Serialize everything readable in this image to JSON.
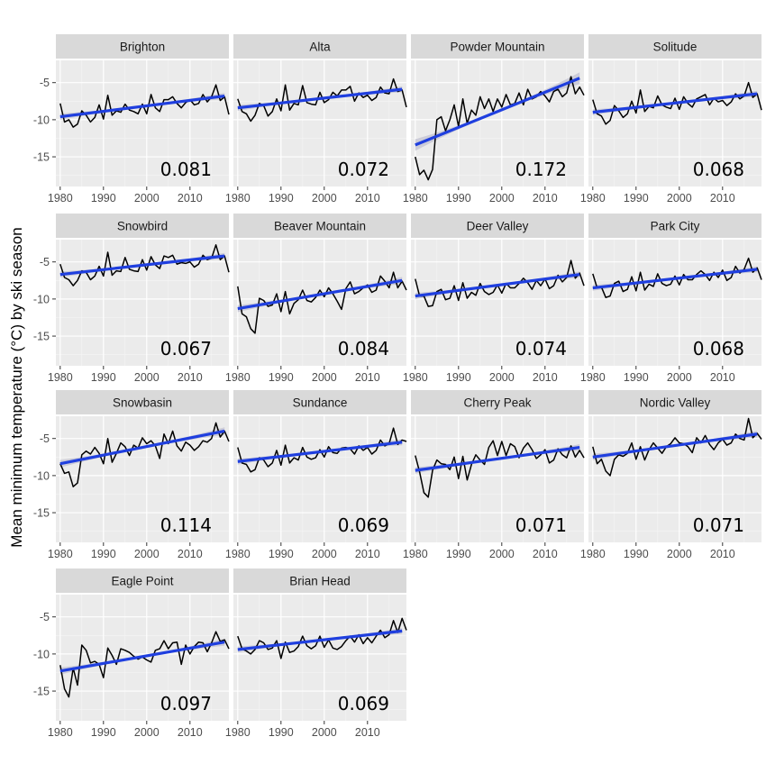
{
  "chart_data": {
    "type": "line",
    "ylabel": "Mean minimum temperature (°C) by ski season",
    "xlabel": "",
    "xlim": [
      1979,
      2019
    ],
    "ylim": [
      -19,
      -2
    ],
    "x_ticks": [
      1980,
      1990,
      2000,
      2010
    ],
    "y_ticks": [
      -5,
      -10,
      -15
    ],
    "y_tick_labels": [
      "-5",
      "-10",
      "-15"
    ],
    "x_tick_labels": [
      "1980",
      "1990",
      "2000",
      "2010"
    ],
    "grid": true,
    "series_color": "#000000",
    "trend_color": "#1f3fdf",
    "ribbon_color": "#c9c9d6",
    "panel_bg": "#ebebeb",
    "strip_bg": "#d9d9d9",
    "panels": [
      {
        "name": "Brighton",
        "slope": "0.081",
        "trend": [
          -9.6,
          -6.8
        ],
        "values": [
          -7.8,
          -10.3,
          -10.0,
          -11.0,
          -10.6,
          -8.8,
          -9.4,
          -10.3,
          -9.7,
          -8.0,
          -9.9,
          -6.7,
          -9.4,
          -8.8,
          -9.0,
          -7.9,
          -8.7,
          -8.9,
          -9.2,
          -7.9,
          -9.2,
          -6.6,
          -8.4,
          -8.9,
          -7.3,
          -7.3,
          -6.9,
          -7.8,
          -8.4,
          -7.7,
          -7.3,
          -8.0,
          -7.8,
          -6.6,
          -7.6,
          -6.9,
          -5.3,
          -7.4,
          -6.9,
          -9.3
        ]
      },
      {
        "name": "Alta",
        "slope": "0.072",
        "trend": [
          -8.4,
          -5.9
        ],
        "values": [
          -7.2,
          -8.9,
          -9.2,
          -10.2,
          -9.4,
          -7.8,
          -8.1,
          -9.5,
          -8.9,
          -7.2,
          -8.8,
          -5.3,
          -8.7,
          -7.8,
          -8.0,
          -5.4,
          -7.7,
          -7.9,
          -8.0,
          -6.3,
          -7.7,
          -7.3,
          -6.3,
          -6.8,
          -6.0,
          -6.0,
          -5.5,
          -7.5,
          -6.4,
          -7.0,
          -6.7,
          -7.4,
          -7.0,
          -5.6,
          -6.4,
          -6.5,
          -4.5,
          -6.2,
          -6.0,
          -8.3
        ]
      },
      {
        "name": "Powder Mountain",
        "slope": "0.172",
        "trend": [
          -13.4,
          -4.4
        ],
        "values": [
          -15.0,
          -17.4,
          -16.8,
          -18.1,
          -16.7,
          -10.0,
          -9.6,
          -11.5,
          -10.0,
          -8.0,
          -10.9,
          -7.2,
          -10.5,
          -8.7,
          -9.4,
          -6.9,
          -8.5,
          -7.2,
          -8.9,
          -7.2,
          -8.3,
          -6.6,
          -8.0,
          -7.8,
          -6.4,
          -8.0,
          -5.9,
          -7.2,
          -6.9,
          -6.2,
          -6.8,
          -7.6,
          -6.2,
          -5.9,
          -6.9,
          -6.4,
          -4.2,
          -6.5,
          -5.6,
          -6.7
        ]
      },
      {
        "name": "Solitude",
        "slope": "0.068",
        "trend": [
          -9.0,
          -6.5
        ],
        "values": [
          -7.3,
          -9.2,
          -9.5,
          -10.6,
          -10.1,
          -8.1,
          -8.8,
          -9.7,
          -9.2,
          -7.5,
          -9.1,
          -6.0,
          -8.9,
          -8.2,
          -8.4,
          -6.8,
          -8.0,
          -8.3,
          -8.5,
          -7.1,
          -8.6,
          -6.9,
          -7.8,
          -8.3,
          -7.2,
          -6.9,
          -6.6,
          -8.0,
          -7.1,
          -7.6,
          -7.4,
          -8.1,
          -7.6,
          -6.5,
          -7.2,
          -6.8,
          -5.0,
          -7.0,
          -6.5,
          -8.7
        ]
      },
      {
        "name": "Snowbird",
        "slope": "0.067",
        "trend": [
          -6.7,
          -4.2
        ],
        "values": [
          -5.3,
          -7.1,
          -7.4,
          -8.2,
          -7.5,
          -6.2,
          -6.4,
          -7.4,
          -6.9,
          -5.6,
          -6.9,
          -3.7,
          -6.8,
          -6.2,
          -6.3,
          -4.4,
          -6.0,
          -6.2,
          -6.3,
          -4.7,
          -6.1,
          -4.3,
          -5.4,
          -5.9,
          -4.2,
          -4.4,
          -4.1,
          -5.3,
          -5.1,
          -5.2,
          -5.0,
          -5.7,
          -5.3,
          -4.1,
          -4.7,
          -4.5,
          -2.7,
          -4.7,
          -4.2,
          -6.4
        ]
      },
      {
        "name": "Beaver Mountain",
        "slope": "0.084",
        "trend": [
          -11.3,
          -7.5
        ],
        "values": [
          -8.3,
          -12.0,
          -12.4,
          -14.0,
          -14.6,
          -9.9,
          -10.2,
          -11.0,
          -10.8,
          -9.3,
          -11.7,
          -9.0,
          -12.0,
          -10.6,
          -10.1,
          -8.8,
          -10.2,
          -10.4,
          -9.8,
          -8.8,
          -9.7,
          -8.5,
          -9.3,
          -10.3,
          -11.4,
          -8.6,
          -7.7,
          -9.3,
          -9.0,
          -8.5,
          -8.1,
          -9.1,
          -8.8,
          -6.9,
          -7.6,
          -8.5,
          -6.4,
          -8.5,
          -7.6,
          -8.8
        ]
      },
      {
        "name": "Deer Valley",
        "slope": "0.074",
        "trend": [
          -9.6,
          -6.7
        ],
        "values": [
          -7.3,
          -9.6,
          -9.6,
          -11.0,
          -10.9,
          -9.0,
          -8.7,
          -10.1,
          -9.9,
          -8.2,
          -10.2,
          -7.8,
          -9.9,
          -9.1,
          -9.5,
          -7.9,
          -9.0,
          -9.4,
          -9.1,
          -8.1,
          -9.2,
          -7.9,
          -8.5,
          -8.5,
          -7.9,
          -7.2,
          -7.8,
          -8.7,
          -7.5,
          -8.2,
          -7.3,
          -8.6,
          -8.2,
          -6.8,
          -7.7,
          -7.1,
          -4.8,
          -7.2,
          -6.5,
          -8.2
        ]
      },
      {
        "name": "Park City",
        "slope": "0.068",
        "trend": [
          -8.5,
          -6.0
        ],
        "values": [
          -6.6,
          -8.5,
          -8.4,
          -9.8,
          -9.6,
          -7.9,
          -7.6,
          -9.0,
          -8.7,
          -7.0,
          -8.9,
          -6.4,
          -8.8,
          -8.0,
          -8.3,
          -6.6,
          -7.9,
          -8.2,
          -8.0,
          -6.9,
          -8.1,
          -6.7,
          -7.4,
          -7.4,
          -6.7,
          -6.2,
          -6.7,
          -7.5,
          -6.4,
          -7.1,
          -6.1,
          -7.5,
          -7.1,
          -5.6,
          -6.5,
          -6.0,
          -4.5,
          -6.4,
          -5.8,
          -7.4
        ]
      },
      {
        "name": "Snowbasin",
        "slope": "0.114",
        "trend": [
          -8.4,
          -4.0
        ],
        "values": [
          -8.4,
          -9.7,
          -9.5,
          -11.5,
          -11.0,
          -7.2,
          -6.7,
          -7.1,
          -6.2,
          -7.0,
          -8.4,
          -5.0,
          -8.2,
          -7.0,
          -5.6,
          -6.1,
          -7.3,
          -5.9,
          -6.3,
          -4.9,
          -5.7,
          -5.3,
          -6.0,
          -7.7,
          -4.4,
          -5.7,
          -4.0,
          -6.0,
          -6.7,
          -5.5,
          -5.9,
          -6.6,
          -6.1,
          -5.3,
          -5.5,
          -5.0,
          -2.9,
          -4.8,
          -4.0,
          -5.4
        ]
      },
      {
        "name": "Sundance",
        "slope": "0.069",
        "trend": [
          -8.1,
          -5.5
        ],
        "values": [
          -6.2,
          -8.3,
          -8.5,
          -9.5,
          -9.2,
          -7.6,
          -7.9,
          -8.8,
          -8.3,
          -6.6,
          -8.6,
          -5.9,
          -8.3,
          -7.6,
          -7.9,
          -6.2,
          -7.5,
          -7.8,
          -7.6,
          -6.5,
          -7.5,
          -6.1,
          -6.9,
          -7.0,
          -6.3,
          -6.2,
          -6.4,
          -7.1,
          -6.0,
          -6.6,
          -6.2,
          -7.1,
          -6.6,
          -5.2,
          -6.0,
          -5.7,
          -3.6,
          -5.8,
          -5.2,
          -5.4
        ]
      },
      {
        "name": "Cherry Peak",
        "slope": "0.071",
        "trend": [
          -9.3,
          -6.2
        ],
        "values": [
          -7.3,
          -9.5,
          -12.3,
          -12.9,
          -9.3,
          -7.9,
          -8.4,
          -8.5,
          -9.2,
          -7.5,
          -10.4,
          -7.4,
          -10.6,
          -8.5,
          -7.2,
          -7.9,
          -8.5,
          -6.2,
          -5.3,
          -7.3,
          -5.4,
          -7.3,
          -5.7,
          -6.1,
          -7.6,
          -6.3,
          -5.6,
          -6.5,
          -7.7,
          -7.2,
          -6.5,
          -8.3,
          -7.9,
          -6.4,
          -7.2,
          -7.6,
          -6.0,
          -7.5,
          -6.6,
          -7.6
        ]
      },
      {
        "name": "Nordic Valley",
        "slope": "0.071",
        "trend": [
          -7.5,
          -4.4
        ],
        "values": [
          -6.1,
          -8.4,
          -7.8,
          -9.4,
          -10.0,
          -7.8,
          -7.2,
          -7.4,
          -7.0,
          -5.6,
          -7.8,
          -6.1,
          -7.9,
          -6.5,
          -5.6,
          -6.3,
          -7.0,
          -6.1,
          -5.7,
          -4.9,
          -5.6,
          -5.7,
          -6.1,
          -6.9,
          -4.9,
          -5.6,
          -4.6,
          -5.8,
          -6.5,
          -5.6,
          -5.1,
          -5.9,
          -5.6,
          -4.4,
          -5.0,
          -5.2,
          -2.3,
          -4.9,
          -4.3,
          -5.1
        ]
      },
      {
        "name": "Eagle Point",
        "slope": "0.097",
        "trend": [
          -12.3,
          -8.4
        ],
        "values": [
          -11.5,
          -14.7,
          -15.8,
          -11.9,
          -14.2,
          -8.8,
          -9.5,
          -11.2,
          -11.0,
          -11.4,
          -13.2,
          -9.2,
          -10.2,
          -11.4,
          -9.3,
          -9.5,
          -9.8,
          -10.3,
          -10.7,
          -10.4,
          -10.8,
          -11.1,
          -9.5,
          -9.3,
          -8.2,
          -9.3,
          -8.5,
          -8.4,
          -11.4,
          -8.8,
          -10.0,
          -9.0,
          -8.4,
          -8.5,
          -9.7,
          -8.5,
          -7.0,
          -8.3,
          -8.1,
          -9.3
        ]
      },
      {
        "name": "Brian Head",
        "slope": "0.069",
        "trend": [
          -9.4,
          -6.9
        ],
        "values": [
          -7.6,
          -9.3,
          -9.6,
          -10.0,
          -9.4,
          -8.2,
          -8.5,
          -9.4,
          -9.2,
          -8.2,
          -10.6,
          -8.4,
          -9.8,
          -9.6,
          -9.0,
          -7.6,
          -8.9,
          -9.3,
          -8.9,
          -7.6,
          -9.1,
          -8.1,
          -9.2,
          -9.4,
          -9.0,
          -8.2,
          -7.6,
          -8.4,
          -7.4,
          -8.6,
          -7.8,
          -8.5,
          -7.6,
          -6.8,
          -7.8,
          -7.4,
          -5.5,
          -7.1,
          -5.2,
          -6.8
        ]
      }
    ]
  }
}
